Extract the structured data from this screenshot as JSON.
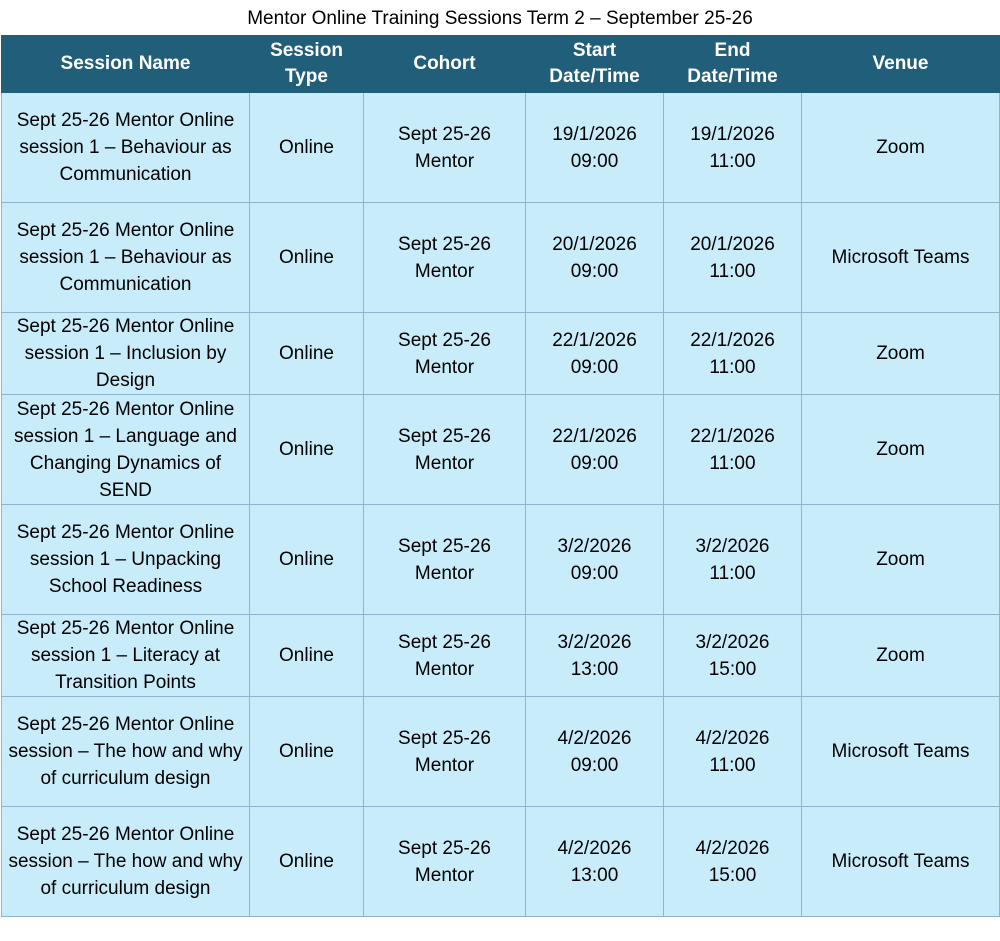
{
  "title": "Mentor Online Training Sessions Term 2 – September 25-26",
  "table": {
    "headers": [
      "Session Name",
      "Session\nType",
      "Cohort",
      "Start\nDate/Time",
      "End\nDate/Time",
      "Venue"
    ],
    "rows": [
      [
        "Sept 25-26 Mentor Online session 1 – Behaviour as Communication",
        "Online",
        "Sept 25-26\nMentor",
        "19/1/2026\n09:00",
        "19/1/2026\n11:00",
        "Zoom"
      ],
      [
        "Sept 25-26 Mentor Online session 1 – Behaviour as Communication",
        "Online",
        "Sept 25-26\nMentor",
        "20/1/2026\n09:00",
        "20/1/2026\n11:00",
        "Microsoft Teams"
      ],
      [
        "Sept 25-26 Mentor Online session 1 – Inclusion by Design",
        "Online",
        "Sept 25-26\nMentor",
        "22/1/2026\n09:00",
        "22/1/2026\n11:00",
        "Zoom"
      ],
      [
        "Sept 25-26 Mentor Online session 1 – Language and Changing Dynamics of SEND",
        "Online",
        "Sept 25-26\nMentor",
        "22/1/2026\n09:00",
        "22/1/2026\n11:00",
        "Zoom"
      ],
      [
        "Sept 25-26 Mentor Online session 1 – Unpacking School Readiness",
        "Online",
        "Sept 25-26\nMentor",
        "3/2/2026\n09:00",
        "3/2/2026\n11:00",
        "Zoom"
      ],
      [
        "Sept 25-26 Mentor Online session 1 – Literacy at Transition Points",
        "Online",
        "Sept 25-26\nMentor",
        "3/2/2026\n13:00",
        "3/2/2026\n15:00",
        "Zoom"
      ],
      [
        "Sept 25-26 Mentor Online session – The how and why of curriculum design",
        "Online",
        "Sept 25-26\nMentor",
        "4/2/2026\n09:00",
        "4/2/2026\n11:00",
        "Microsoft Teams"
      ],
      [
        "Sept 25-26 Mentor Online session – The how and why of curriculum design",
        "Online",
        "Sept 25-26\nMentor",
        "4/2/2026\n13:00",
        "4/2/2026\n15:00",
        "Microsoft Teams"
      ]
    ]
  }
}
